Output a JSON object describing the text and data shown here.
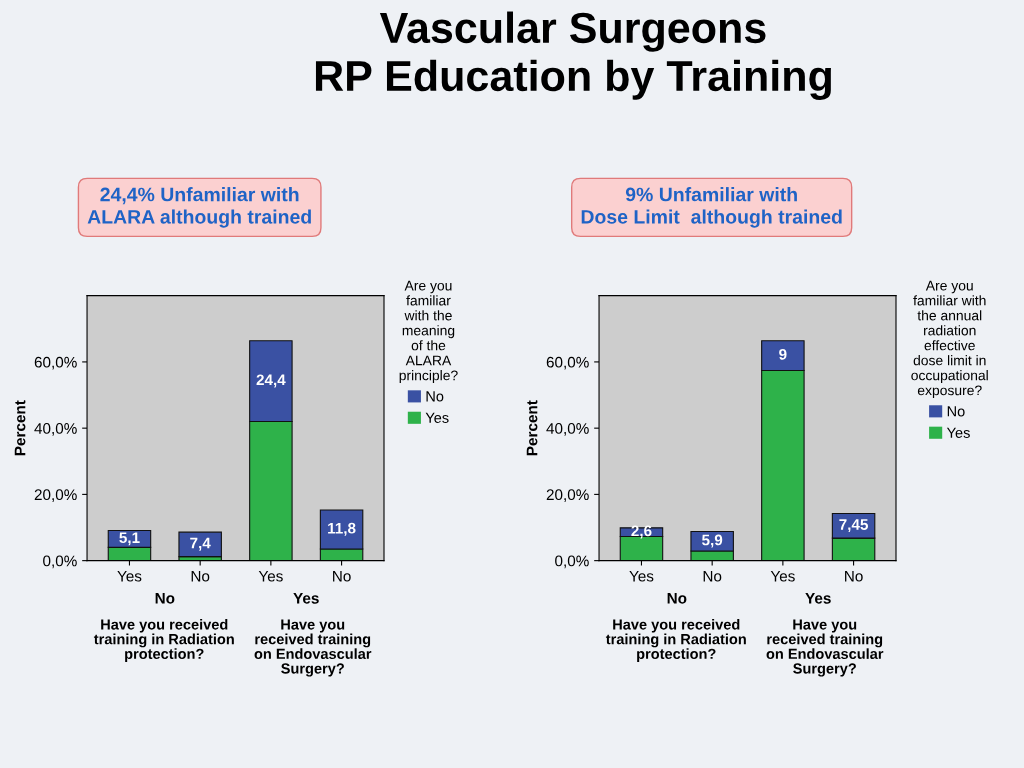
{
  "chart_data": [
    {
      "type": "bar",
      "stacked": true,
      "title": "Vascular Surgeons\nRP Education by Training",
      "subtitle": "24,4% Unfamiliar with\nALARA although trained",
      "categories": [
        "Yes",
        "No",
        "Yes",
        "No"
      ],
      "xlabel": "Have you received\ntraining in Radiation\nprotection?",
      "annotations": [
        "No",
        "Yes",
        "Have you\nreceived training\non Endovascular\nSurgery?"
      ],
      "ylabel": "Percent",
      "ylim": [
        0,
        80
      ],
      "yticks": [
        {
          "value": 0,
          "label": "0,0%"
        },
        {
          "value": 20,
          "label": "20,0%"
        },
        {
          "value": 40,
          "label": "40,0%"
        },
        {
          "value": 60,
          "label": "60,0%"
        }
      ],
      "legend_title": "Are you\nfamiliar\nwith the\nmeaning\nof the\nALARA\nprinciple?",
      "legend": "right",
      "series": [
        {
          "name": "Yes",
          "color": "#2eb24a",
          "values": [
            4.0,
            1.2,
            42.0,
            3.5
          ]
        },
        {
          "name": "No",
          "color": "#3a51a3",
          "values": [
            5.1,
            7.4,
            24.4,
            11.8
          ],
          "value_labels": [
            "5,1",
            "7,4",
            "24,4",
            "11,8"
          ]
        }
      ]
    },
    {
      "type": "bar",
      "stacked": true,
      "subtitle": "9% Unfamiliar with\nDose Limit  although trained",
      "categories": [
        "Yes",
        "No",
        "Yes",
        "No"
      ],
      "xlabel": "Have you received\ntraining in Radiation\nprotection?",
      "annotations": [
        "No",
        "Yes",
        "Have you\nreceived training\non Endovascular\nSurgery?"
      ],
      "ylabel": "Percent",
      "ylim": [
        0,
        80
      ],
      "yticks": [
        {
          "value": 0,
          "label": "0,0%"
        },
        {
          "value": 20,
          "label": "20,0%"
        },
        {
          "value": 40,
          "label": "40,0%"
        },
        {
          "value": 60,
          "label": "60,0%"
        }
      ],
      "legend_title": "Are you\nfamiliar with\nthe annual\nradiation\neffective\ndose limit in\noccupational\nexposure?",
      "legend": "right",
      "series": [
        {
          "name": "Yes",
          "color": "#2eb24a",
          "values": [
            7.3,
            2.9,
            57.4,
            6.8
          ]
        },
        {
          "name": "No",
          "color": "#3a51a3",
          "values": [
            2.6,
            5.9,
            9,
            7.45
          ],
          "value_labels": [
            "2,6",
            "5,9",
            "9",
            "7,45"
          ]
        }
      ]
    }
  ]
}
